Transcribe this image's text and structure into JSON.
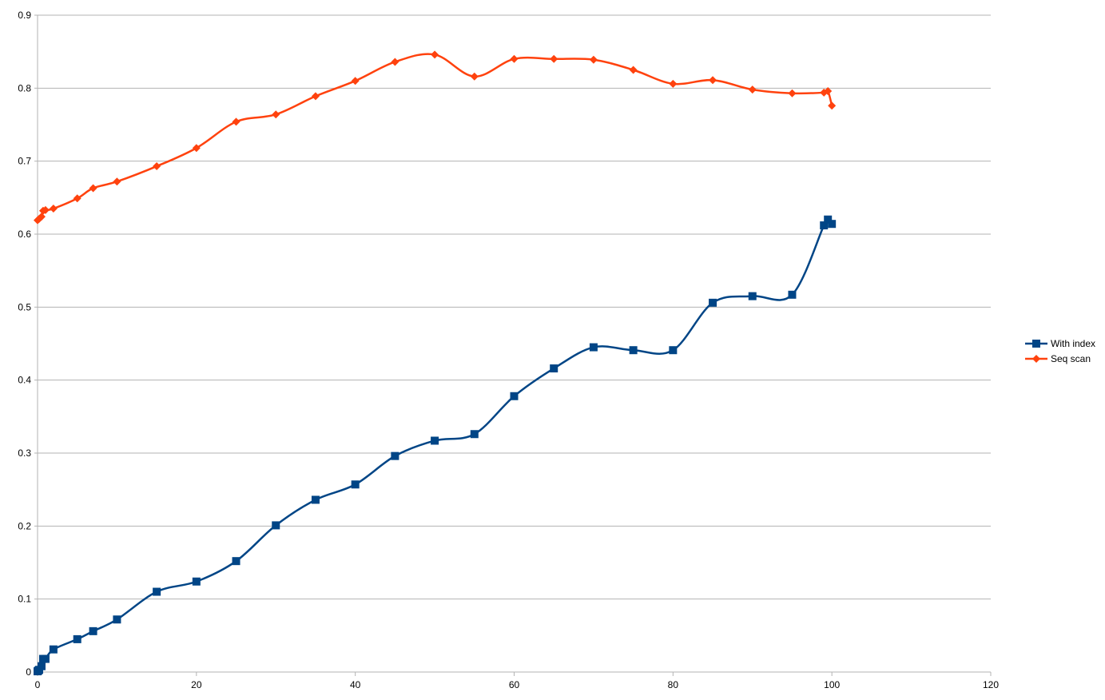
{
  "chart_data": {
    "type": "scatter",
    "title": "",
    "xlabel": "",
    "ylabel": "",
    "xlim": [
      0,
      120
    ],
    "ylim": [
      0,
      0.9
    ],
    "x_ticks": [
      0,
      20,
      40,
      60,
      80,
      100,
      120
    ],
    "y_ticks": [
      0,
      0.1,
      0.2,
      0.3,
      0.4,
      0.5,
      0.6,
      0.7,
      0.8,
      0.9
    ],
    "grid": "horizontal",
    "legend_position": "right",
    "series": [
      {
        "name": "With index",
        "color": "#004586",
        "marker": "square",
        "smooth": true,
        "points": [
          [
            0,
            0.001
          ],
          [
            0.1,
            0.002
          ],
          [
            0.2,
            0.003
          ],
          [
            0.5,
            0.008
          ],
          [
            0.7,
            0.018
          ],
          [
            1,
            0.018
          ],
          [
            2,
            0.031
          ],
          [
            5,
            0.045
          ],
          [
            7,
            0.056
          ],
          [
            10,
            0.072
          ],
          [
            15,
            0.11
          ],
          [
            20,
            0.124
          ],
          [
            25,
            0.152
          ],
          [
            30,
            0.201
          ],
          [
            35,
            0.236
          ],
          [
            40,
            0.257
          ],
          [
            45,
            0.296
          ],
          [
            50,
            0.317
          ],
          [
            55,
            0.326
          ],
          [
            60,
            0.378
          ],
          [
            65,
            0.416
          ],
          [
            70,
            0.445
          ],
          [
            75,
            0.441
          ],
          [
            80,
            0.441
          ],
          [
            85,
            0.506
          ],
          [
            90,
            0.515
          ],
          [
            95,
            0.517
          ],
          [
            99,
            0.612
          ],
          [
            99.5,
            0.62
          ],
          [
            100,
            0.614
          ]
        ]
      },
      {
        "name": "Seq scan",
        "color": "#ff420e",
        "marker": "diamond",
        "smooth": true,
        "points": [
          [
            0,
            0.619
          ],
          [
            0.2,
            0.621
          ],
          [
            0.5,
            0.624
          ],
          [
            0.7,
            0.632
          ],
          [
            1,
            0.633
          ],
          [
            2,
            0.635
          ],
          [
            5,
            0.649
          ],
          [
            7,
            0.663
          ],
          [
            10,
            0.672
          ],
          [
            15,
            0.693
          ],
          [
            20,
            0.718
          ],
          [
            25,
            0.754
          ],
          [
            30,
            0.764
          ],
          [
            35,
            0.789
          ],
          [
            40,
            0.81
          ],
          [
            45,
            0.836
          ],
          [
            50,
            0.846
          ],
          [
            55,
            0.816
          ],
          [
            60,
            0.84
          ],
          [
            65,
            0.84
          ],
          [
            70,
            0.839
          ],
          [
            75,
            0.825
          ],
          [
            80,
            0.806
          ],
          [
            85,
            0.811
          ],
          [
            90,
            0.798
          ],
          [
            95,
            0.793
          ],
          [
            99,
            0.794
          ],
          [
            99.5,
            0.796
          ],
          [
            100,
            0.776
          ]
        ]
      }
    ]
  }
}
